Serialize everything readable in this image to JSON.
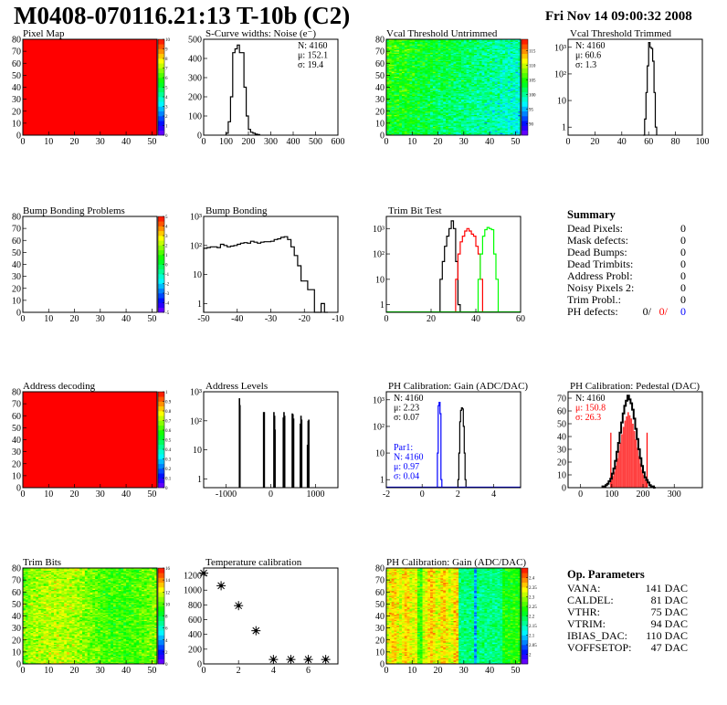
{
  "header": {
    "title": "M0408-070116.21:13 T-10b (C2)",
    "date": "Fri Nov 14 09:00:32 2008"
  },
  "colors": {
    "frame": "#000000",
    "red_series": "#ff0000",
    "green_series": "#00ff00",
    "blue_series": "#0000ff"
  },
  "summary": {
    "title": "Summary",
    "rows": [
      {
        "label": "Dead Pixels:",
        "value": "0"
      },
      {
        "label": "Mask defects:",
        "value": "0"
      },
      {
        "label": "Dead Bumps:",
        "value": "0"
      },
      {
        "label": "Dead Trimbits:",
        "value": "0"
      },
      {
        "label": "Address Probl:",
        "value": "0"
      },
      {
        "label": "Noisy Pixels 2:",
        "value": "0"
      },
      {
        "label": "Trim Probl.:",
        "value": "0"
      }
    ],
    "ph_defects": {
      "label": "PH defects:",
      "a": "0/",
      "b": "0/",
      "c": "0"
    }
  },
  "op_parameters": {
    "title": "Op. Parameters",
    "rows": [
      {
        "label": "VANA:",
        "value": "141 DAC"
      },
      {
        "label": "CALDEL:",
        "value": "81 DAC"
      },
      {
        "label": "VTHR:",
        "value": "75 DAC"
      },
      {
        "label": "VTRIM:",
        "value": "94 DAC"
      },
      {
        "label": "IBIAS_DAC:",
        "value": "110 DAC"
      },
      {
        "label": "VOFFSETOP:",
        "value": "47 DAC"
      }
    ]
  },
  "chart_data": [
    {
      "type": "heatmap",
      "title": "Pixel Map",
      "xlim": [
        0,
        52
      ],
      "ylim": [
        0,
        80
      ],
      "xticks": [
        "0",
        "10",
        "20",
        "30",
        "40",
        "50"
      ],
      "yticks": [
        "0",
        "10",
        "20",
        "30",
        "40",
        "50",
        "60",
        "70",
        "80"
      ],
      "zlim": [
        0,
        10
      ],
      "zticks": [
        "0",
        "1",
        "2",
        "3",
        "4",
        "5",
        "6",
        "7",
        "8",
        "9",
        "10"
      ],
      "pattern": "uniform",
      "value": 10
    },
    {
      "type": "bar",
      "title": "S-Curve widths: Noise (e⁻)",
      "xlim": [
        0,
        600
      ],
      "ylim": [
        0,
        500
      ],
      "log": false,
      "xticks": [
        "0",
        "100",
        "200",
        "300",
        "400",
        "500",
        "600"
      ],
      "yticks": [
        "0",
        "100",
        "200",
        "300",
        "400",
        "500"
      ],
      "stats": [
        {
          "text": "N: 4160",
          "color": "#000000"
        },
        {
          "text": "μ: 152.1",
          "color": "#000000"
        },
        {
          "text": "σ: 19.4",
          "color": "#000000"
        }
      ],
      "stats_pos": "top-right",
      "series": [
        {
          "color": "#000000",
          "x0": 100,
          "bin": 10,
          "values": [
            10,
            70,
            200,
            430,
            450,
            470,
            430,
            430,
            250,
            100,
            30,
            15,
            10,
            5,
            3
          ]
        }
      ]
    },
    {
      "type": "heatmap",
      "title": "Vcal Threshold Untrimmed",
      "xlim": [
        0,
        52
      ],
      "ylim": [
        0,
        80
      ],
      "xticks": [
        "0",
        "10",
        "20",
        "30",
        "40",
        "50"
      ],
      "yticks": [
        "0",
        "10",
        "20",
        "30",
        "40",
        "50",
        "60",
        "70",
        "80"
      ],
      "zlim": [
        86,
        119
      ],
      "zticks": [
        "90",
        "95",
        "100",
        "105",
        "110",
        "115"
      ],
      "pattern": "noisy-gradient"
    },
    {
      "type": "bar",
      "title": "Vcal Threshold Trimmed",
      "xlim": [
        0,
        100
      ],
      "ylim": [
        0.5,
        2000
      ],
      "log": true,
      "xticks": [
        "0",
        "20",
        "40",
        "60",
        "80",
        "100"
      ],
      "yticks": [
        "1",
        "10",
        "10²",
        "10³"
      ],
      "stats": [
        {
          "text": "N: 4160",
          "color": "#000000"
        },
        {
          "text": "μ: 60.6",
          "color": "#000000"
        },
        {
          "text": "σ:  1.3",
          "color": "#000000"
        }
      ],
      "stats_pos": "top-left",
      "series": [
        {
          "color": "#000000",
          "x0": 56,
          "bin": 1,
          "values": [
            0,
            2,
            20,
            200,
            1500,
            1000,
            900,
            300,
            20,
            1
          ]
        }
      ]
    },
    {
      "type": "heatmap",
      "title": "Bump Bonding Problems",
      "xlim": [
        0,
        52
      ],
      "ylim": [
        0,
        80
      ],
      "xticks": [
        "0",
        "10",
        "20",
        "30",
        "40",
        "50"
      ],
      "yticks": [
        "0",
        "10",
        "20",
        "30",
        "40",
        "50",
        "60",
        "70",
        "80"
      ],
      "zlim": [
        -5,
        5
      ],
      "zticks": [
        "-5",
        "-4",
        "-3",
        "-2",
        "-1",
        "0",
        "1",
        "2",
        "3",
        "4",
        "5"
      ],
      "pattern": "empty"
    },
    {
      "type": "bar",
      "title": "Bump Bonding",
      "xlim": [
        -50,
        -10
      ],
      "ylim": [
        0.5,
        1000
      ],
      "log": true,
      "xticks": [
        "-50",
        "-40",
        "-30",
        "-20",
        "-10"
      ],
      "yticks": [
        "1",
        "10",
        "10²",
        "10³"
      ],
      "series": [
        {
          "color": "#000000",
          "x0": -50,
          "bin": 1,
          "values": [
            80,
            85,
            90,
            90,
            85,
            110,
            100,
            90,
            95,
            100,
            110,
            120,
            125,
            120,
            140,
            130,
            120,
            130,
            135,
            135,
            140,
            160,
            170,
            190,
            200,
            160,
            90,
            45,
            20,
            6,
            6,
            3,
            3,
            0,
            0,
            1,
            0
          ]
        }
      ]
    },
    {
      "type": "bar",
      "title": "Trim Bit Test",
      "xlim": [
        0,
        60
      ],
      "ylim": [
        0.5,
        3000
      ],
      "log": true,
      "xticks": [
        "0",
        "20",
        "40",
        "60"
      ],
      "yticks": [
        "1",
        "10",
        "10²",
        "10³"
      ],
      "series": [
        {
          "color": "#000000",
          "x0": 24,
          "bin": 1,
          "values": [
            10,
            50,
            200,
            500,
            1000,
            2000,
            1000,
            50,
            1
          ]
        },
        {
          "color": "#ff0000",
          "x0": 31,
          "bin": 1,
          "values": [
            10,
            100,
            300,
            500,
            800,
            1000,
            800,
            600,
            500,
            200,
            100,
            10
          ]
        },
        {
          "color": "#00ff00",
          "x0": 41,
          "bin": 1,
          "values": [
            10,
            100,
            500,
            900,
            1100,
            1000,
            900,
            100,
            10
          ]
        }
      ]
    },
    {
      "type": "heatmap",
      "title": "Address decoding",
      "xlim": [
        0,
        52
      ],
      "ylim": [
        0,
        80
      ],
      "xticks": [
        "0",
        "10",
        "20",
        "30",
        "40",
        "50"
      ],
      "yticks": [
        "0",
        "10",
        "20",
        "30",
        "40",
        "50",
        "60",
        "70",
        "80"
      ],
      "zlim": [
        0,
        1
      ],
      "zticks": [
        "0",
        "0.1",
        "0.2",
        "0.3",
        "0.4",
        "0.5",
        "0.6",
        "0.7",
        "0.8",
        "0.9",
        "1"
      ],
      "pattern": "uniform",
      "value": 1
    },
    {
      "type": "bar",
      "title": "Address Levels",
      "xlim": [
        -1500,
        1500
      ],
      "ylim": [
        0.5,
        1000
      ],
      "log": true,
      "xticks": [
        "-1000",
        "0",
        "1000"
      ],
      "yticks": [
        "1",
        "10",
        "10²",
        "10³"
      ],
      "spikes": [
        [
          -700,
          600
        ],
        [
          -690,
          350
        ],
        [
          -160,
          200
        ],
        [
          -145,
          200
        ],
        [
          70,
          200
        ],
        [
          85,
          150
        ],
        [
          95,
          50
        ],
        [
          280,
          130
        ],
        [
          295,
          200
        ],
        [
          310,
          150
        ],
        [
          480,
          180
        ],
        [
          495,
          170
        ],
        [
          510,
          120
        ],
        [
          660,
          80
        ],
        [
          675,
          150
        ],
        [
          690,
          110
        ],
        [
          820,
          15
        ],
        [
          835,
          100
        ],
        [
          850,
          110
        ]
      ]
    },
    {
      "type": "bar",
      "title": "PH Calibration: Gain (ADC/DAC)",
      "xlim": [
        -2,
        5.5
      ],
      "ylim": [
        0.5,
        2000
      ],
      "log": true,
      "xticks": [
        "-2",
        "0",
        "2",
        "4"
      ],
      "yticks": [
        "1",
        "10",
        "10²",
        "10³"
      ],
      "stats": [
        {
          "text": "N: 4160",
          "color": "#000000"
        },
        {
          "text": "μ: 2.23",
          "color": "#000000"
        },
        {
          "text": "σ: 0.07",
          "color": "#000000"
        }
      ],
      "stats_pos": "top-left",
      "stats2": [
        {
          "text": "Par1:",
          "color": "#0000ff"
        },
        {
          "text": "N: 4160",
          "color": "#0000ff"
        },
        {
          "text": "μ: 0.97",
          "color": "#0000ff"
        },
        {
          "text": "σ: 0.04",
          "color": "#0000ff"
        }
      ],
      "series": [
        {
          "color": "#000000",
          "x0": 2.0,
          "bin": 0.05,
          "values": [
            1,
            10,
            150,
            400,
            500,
            450,
            100,
            10,
            1
          ]
        },
        {
          "color": "#0000ff",
          "x0": 0.85,
          "bin": 0.05,
          "values": [
            10,
            600,
            800,
            300,
            1
          ]
        }
      ]
    },
    {
      "type": "bar",
      "title": "PH Calibration: Pedestal (DAC)",
      "xlim": [
        -40,
        390
      ],
      "ylim": [
        0,
        75
      ],
      "log": false,
      "xticks": [
        "0",
        "100",
        "200",
        "300"
      ],
      "yticks": [
        "0",
        "10",
        "20",
        "30",
        "40",
        "50",
        "60",
        "70"
      ],
      "stats": [
        {
          "text": "N: 4160",
          "color": "#000000"
        },
        {
          "text": "μ: 150.8",
          "color": "#ff0000"
        },
        {
          "text": "σ: 26.3",
          "color": "#ff0000"
        }
      ],
      "stats_pos": "top-left",
      "fit_range": [
        97,
        213
      ],
      "series": [
        {
          "color": "#000000",
          "x0": 70,
          "bin": 5,
          "values": [
            1,
            1,
            2,
            3,
            5,
            7,
            11,
            15,
            21,
            28,
            35,
            43,
            51,
            58,
            64,
            68,
            72,
            69,
            66,
            61,
            54,
            46,
            38,
            30,
            23,
            17,
            12,
            8,
            6,
            4,
            2,
            1,
            1,
            0
          ]
        }
      ]
    },
    {
      "type": "heatmap",
      "title": "Trim Bits",
      "xlim": [
        0,
        52
      ],
      "ylim": [
        0,
        80
      ],
      "xticks": [
        "0",
        "10",
        "20",
        "30",
        "40",
        "50"
      ],
      "yticks": [
        "0",
        "10",
        "20",
        "30",
        "40",
        "50",
        "60",
        "70",
        "80"
      ],
      "zlim": [
        0,
        16
      ],
      "zticks": [
        "0",
        "2",
        "4",
        "6",
        "8",
        "10",
        "12",
        "14",
        "16"
      ],
      "pattern": "noisy"
    },
    {
      "type": "scatter",
      "title": "Temperature calibration",
      "xlim": [
        0,
        7.7
      ],
      "ylim": [
        0,
        1300
      ],
      "xticks": [
        "0",
        "2",
        "4",
        "6"
      ],
      "yticks": [
        "0",
        "200",
        "400",
        "600",
        "800",
        "1000",
        "1200"
      ],
      "marker": "star",
      "points": [
        [
          0,
          1230
        ],
        [
          1,
          1060
        ],
        [
          2,
          790
        ],
        [
          3,
          450
        ],
        [
          4,
          60
        ],
        [
          5,
          60
        ],
        [
          6,
          60
        ],
        [
          7,
          60
        ]
      ]
    },
    {
      "type": "heatmap",
      "title": "PH Calibration: Gain (ADC/DAC)",
      "xlim": [
        0,
        52
      ],
      "ylim": [
        0,
        80
      ],
      "xticks": [
        "0",
        "10",
        "20",
        "30",
        "40",
        "50"
      ],
      "yticks": [
        "0",
        "10",
        "20",
        "30",
        "40",
        "50",
        "60",
        "70",
        "80"
      ],
      "zlim": [
        1.95,
        2.45
      ],
      "zticks": [
        "2",
        "2.05",
        "2.1",
        "2.15",
        "2.2",
        "2.25",
        "2.3",
        "2.35",
        "2.4"
      ],
      "pattern": "columns"
    }
  ]
}
